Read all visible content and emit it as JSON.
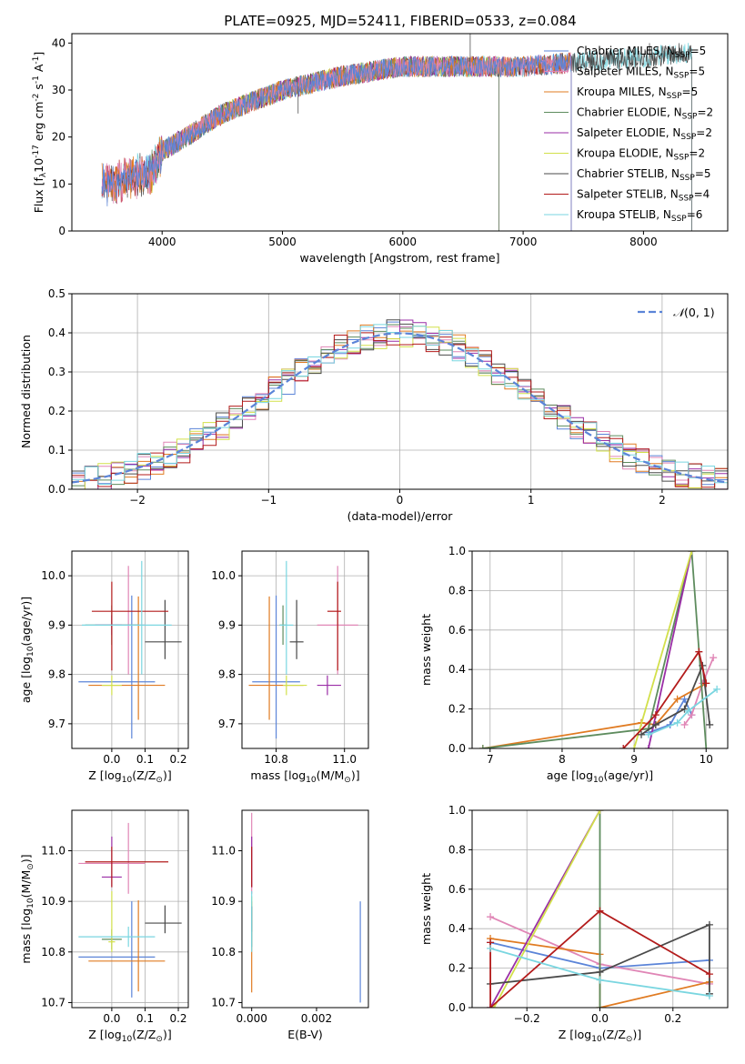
{
  "colors": {
    "Chabrier MILES": "#5b84d8",
    "Salpeter MILES": "#e086b6",
    "Kroupa MILES": "#e07b22",
    "Chabrier ELODIE": "#5e8c5e",
    "Salpeter ELODIE": "#9a2ea6",
    "Kroupa ELODIE": "#d2e04a",
    "Chabrier STELIB": "#4a4a4a",
    "Salpeter STELIB": "#b31b1b",
    "Kroupa STELIB": "#7ad6e0",
    "normal": "#5b84d8",
    "grid": "#b0b0b0"
  },
  "chart_data": [
    {
      "id": "spectrum",
      "type": "line",
      "title": "PLATE=0925, MJD=52411, FIBERID=0533, z=0.084",
      "xlabel": "wavelength [Angstrom, rest frame]",
      "ylabel": "Flux [f$_\\lambda$10$^{-17}$ erg cm$^{-2}$ s$^{-1}$ A$^{-1}$]",
      "xlim": [
        3250,
        8700
      ],
      "ylim": [
        0,
        42
      ],
      "xticks": [
        4000,
        5000,
        6000,
        7000,
        8000
      ],
      "yticks": [
        0,
        10,
        20,
        30,
        40
      ],
      "grid": false,
      "legend_position": "upper right",
      "series": [
        {
          "name": "Chabrier MILES, N$_{SSP}$=5",
          "color_key": "Chabrier MILES",
          "start": 3500,
          "end": 7400
        },
        {
          "name": "Salpeter MILES, N$_{SSP}$=5",
          "color_key": "Salpeter MILES",
          "start": 3500,
          "end": 7400
        },
        {
          "name": "Kroupa MILES, N$_{SSP}$=5",
          "color_key": "Kroupa MILES",
          "start": 3500,
          "end": 7400
        },
        {
          "name": "Chabrier ELODIE, N$_{SSP}$=2",
          "color_key": "Chabrier ELODIE",
          "start": 3900,
          "end": 6800
        },
        {
          "name": "Salpeter ELODIE, N$_{SSP}$=2",
          "color_key": "Salpeter ELODIE",
          "start": 3900,
          "end": 6800
        },
        {
          "name": "Kroupa ELODIE, N$_{SSP}$=2",
          "color_key": "Kroupa ELODIE",
          "start": 3900,
          "end": 6800
        },
        {
          "name": "Chabrier STELIB, N$_{SSP}$=5",
          "color_key": "Chabrier STELIB",
          "start": 3500,
          "end": 8400
        },
        {
          "name": "Salpeter STELIB, N$_{SSP}$=4",
          "color_key": "Salpeter STELIB",
          "start": 3500,
          "end": 7400
        },
        {
          "name": "Kroupa STELIB, N$_{SSP}$=6",
          "color_key": "Kroupa STELIB",
          "start": 3500,
          "end": 8400
        }
      ],
      "continuum": {
        "wavelength": [
          3500,
          3700,
          3900,
          4000,
          4200,
          4500,
          5000,
          5500,
          6000,
          6500,
          7000,
          7500,
          8000,
          8400
        ],
        "flux": [
          10,
          11,
          12,
          17,
          20,
          25,
          30,
          33,
          35,
          35,
          35,
          36,
          37,
          38
        ]
      },
      "spikes": [
        {
          "x": 5130,
          "y": 25
        },
        {
          "x": 6560,
          "y": 42
        },
        {
          "x": 8050,
          "y": 40
        }
      ]
    },
    {
      "id": "residuals",
      "type": "histogram",
      "xlabel": "(data-model)/error",
      "ylabel": "Normed distribution",
      "xlim": [
        -2.5,
        2.5
      ],
      "ylim": [
        0,
        0.5
      ],
      "xticks": [
        -2,
        -1,
        0,
        1,
        2
      ],
      "yticks": [
        0.0,
        0.1,
        0.2,
        0.3,
        0.4,
        0.5
      ],
      "grid": true,
      "legend_position": "upper right",
      "legend": "$\\mathcal{N}(0,1)$",
      "bin_width": 0.1,
      "bin_start": -2.5
    },
    {
      "id": "age-vs-Z",
      "type": "errorbar",
      "xlabel": "Z [log$_{10}$(Z/Z$_\\odot$)]",
      "ylabel": "age  [log$_{10}$(age/yr)]",
      "xlim": [
        -0.12,
        0.23
      ],
      "ylim": [
        9.65,
        10.05
      ],
      "xticks": [
        0.0,
        0.1,
        0.2
      ],
      "yticks": [
        9.7,
        9.8,
        9.9,
        10.0
      ],
      "grid": true,
      "points": [
        {
          "key": "Chabrier MILES",
          "x": 0.06,
          "y": 9.785,
          "xerr": [
            0.16,
            0.07
          ],
          "yerr": [
            0.115,
            0.175
          ]
        },
        {
          "key": "Salpeter MILES",
          "x": 0.05,
          "y": 9.9,
          "xerr": [
            0.05,
            0.05
          ],
          "yerr": [
            0.1,
            0.12
          ]
        },
        {
          "key": "Kroupa MILES",
          "x": 0.08,
          "y": 9.778,
          "xerr": [
            0.15,
            0.08
          ],
          "yerr": [
            0.07,
            0.18
          ]
        },
        {
          "key": "Chabrier ELODIE",
          "x": 0.0,
          "y": 9.9,
          "xerr": [
            0.08,
            0.08
          ],
          "yerr": [
            0.04,
            0.04
          ]
        },
        {
          "key": "Salpeter ELODIE",
          "x": 0.0,
          "y": 9.9,
          "xerr": [
            0.05,
            0.03
          ],
          "yerr": [
            0.02,
            0.02
          ]
        },
        {
          "key": "Kroupa ELODIE",
          "x": 0.0,
          "y": 9.778,
          "xerr": [
            0.03,
            0.03
          ],
          "yerr": [
            0.02,
            0.02
          ]
        },
        {
          "key": "Chabrier STELIB",
          "x": 0.16,
          "y": 9.866,
          "xerr": [
            0.06,
            0.05
          ],
          "yerr": [
            0.035,
            0.085
          ]
        },
        {
          "key": "Salpeter STELIB",
          "x": 0.0,
          "y": 9.928,
          "xerr": [
            0.06,
            0.17
          ],
          "yerr": [
            0.12,
            0.06
          ]
        },
        {
          "key": "Kroupa STELIB",
          "x": 0.09,
          "y": 9.9,
          "xerr": [
            0.18,
            0.09
          ],
          "yerr": [
            0.1,
            0.13
          ]
        }
      ]
    },
    {
      "id": "age-vs-mass",
      "type": "errorbar",
      "xlabel": "mass [log$_{10}$(M/M$_\\odot$)]",
      "ylabel": "",
      "xlim": [
        10.7,
        11.07
      ],
      "ylim": [
        9.65,
        10.05
      ],
      "xticks": [
        10.8,
        11.0
      ],
      "yticks": [
        9.7,
        9.8,
        9.9,
        10.0
      ],
      "grid": true,
      "points": [
        {
          "key": "Chabrier MILES",
          "x": 10.8,
          "y": 9.785,
          "xerr": [
            0.07,
            0.07
          ],
          "yerr": [
            0.115,
            0.175
          ]
        },
        {
          "key": "Salpeter MILES",
          "x": 10.98,
          "y": 9.9,
          "xerr": [
            0.06,
            0.06
          ],
          "yerr": [
            0.1,
            0.12
          ]
        },
        {
          "key": "Kroupa MILES",
          "x": 10.78,
          "y": 9.778,
          "xerr": [
            0.06,
            0.1
          ],
          "yerr": [
            0.07,
            0.18
          ]
        },
        {
          "key": "Chabrier ELODIE",
          "x": 10.82,
          "y": 9.9,
          "xerr": [
            0.01,
            0.01
          ],
          "yerr": [
            0.04,
            0.04
          ]
        },
        {
          "key": "Salpeter ELODIE",
          "x": 10.95,
          "y": 9.778,
          "xerr": [
            0.03,
            0.04
          ],
          "yerr": [
            0.02,
            0.02
          ]
        },
        {
          "key": "Kroupa ELODIE",
          "x": 10.83,
          "y": 9.778,
          "xerr": [
            0.01,
            0.06
          ],
          "yerr": [
            0.02,
            0.02
          ]
        },
        {
          "key": "Chabrier STELIB",
          "x": 10.86,
          "y": 9.866,
          "xerr": [
            0.02,
            0.02
          ],
          "yerr": [
            0.035,
            0.085
          ]
        },
        {
          "key": "Salpeter STELIB",
          "x": 10.98,
          "y": 9.928,
          "xerr": [
            0.03,
            0.01
          ],
          "yerr": [
            0.12,
            0.06
          ]
        },
        {
          "key": "Kroupa STELIB",
          "x": 10.83,
          "y": 9.9,
          "xerr": [
            0.02,
            0.02
          ],
          "yerr": [
            0.1,
            0.13
          ]
        }
      ]
    },
    {
      "id": "weight-vs-age",
      "type": "line",
      "xlabel": "age  [log$_{10}$(age/yr)]",
      "ylabel": "mass weight",
      "xlim": [
        6.75,
        10.3
      ],
      "ylim": [
        0,
        1
      ],
      "xticks": [
        7,
        8,
        9,
        10
      ],
      "yticks": [
        0.0,
        0.2,
        0.4,
        0.6,
        0.8,
        1.0
      ],
      "grid": true,
      "series": [
        {
          "key": "Chabrier MILES",
          "x": [
            9.2,
            9.5,
            9.7,
            9.8
          ],
          "y": [
            0.08,
            0.12,
            0.25,
            0.17
          ]
        },
        {
          "key": "Salpeter MILES",
          "x": [
            9.7,
            9.8,
            9.95,
            10.1
          ],
          "y": [
            0.12,
            0.17,
            0.33,
            0.46
          ]
        },
        {
          "key": "Kroupa MILES",
          "x": [
            6.9,
            9.1,
            9.3,
            9.6,
            10.0
          ],
          "y": [
            0.0,
            0.13,
            0.12,
            0.25,
            0.33
          ]
        },
        {
          "key": "Chabrier ELODIE",
          "x": [
            6.9,
            9.2,
            9.8,
            10.0
          ],
          "y": [
            0.0,
            0.1,
            1.0,
            0.0
          ]
        },
        {
          "key": "Salpeter ELODIE",
          "x": [
            9.2,
            9.8
          ],
          "y": [
            0.0,
            1.0
          ]
        },
        {
          "key": "Kroupa ELODIE",
          "x": [
            9.0,
            9.8
          ],
          "y": [
            0.0,
            1.0
          ]
        },
        {
          "key": "Chabrier STELIB",
          "x": [
            9.1,
            9.3,
            9.7,
            9.95,
            10.05
          ],
          "y": [
            0.07,
            0.12,
            0.2,
            0.42,
            0.12
          ]
        },
        {
          "key": "Salpeter STELIB",
          "x": [
            8.85,
            9.3,
            9.9,
            10.0
          ],
          "y": [
            0.0,
            0.17,
            0.49,
            0.33
          ]
        },
        {
          "key": "Kroupa STELIB",
          "x": [
            9.2,
            9.6,
            9.75,
            10.15
          ],
          "y": [
            0.07,
            0.13,
            0.19,
            0.3
          ]
        }
      ]
    },
    {
      "id": "mass-vs-Z",
      "type": "errorbar",
      "xlabel": "Z [log$_{10}$(Z/Z$_\\odot$)]",
      "ylabel": "mass [log$_{10}$(M/M$_\\odot$)]",
      "xlim": [
        -0.12,
        0.23
      ],
      "ylim": [
        10.69,
        11.08
      ],
      "xticks": [
        0.0,
        0.1,
        0.2
      ],
      "yticks": [
        10.7,
        10.8,
        10.9,
        11.0
      ],
      "grid": true,
      "points": [
        {
          "key": "Chabrier MILES",
          "x": 0.06,
          "y": 10.79,
          "xerr": [
            0.16,
            0.07
          ],
          "yerr": [
            0.08,
            0.11
          ]
        },
        {
          "key": "Salpeter MILES",
          "x": 0.05,
          "y": 10.975,
          "xerr": [
            0.15,
            0.05
          ],
          "yerr": [
            0.06,
            0.08
          ]
        },
        {
          "key": "Kroupa MILES",
          "x": 0.08,
          "y": 10.782,
          "xerr": [
            0.15,
            0.08
          ],
          "yerr": [
            0.06,
            0.12
          ]
        },
        {
          "key": "Chabrier ELODIE",
          "x": 0.0,
          "y": 10.825,
          "xerr": [
            0.03,
            0.03
          ],
          "yerr": [
            0.02,
            0.02
          ]
        },
        {
          "key": "Salpeter ELODIE",
          "x": 0.0,
          "y": 10.948,
          "xerr": [
            0.03,
            0.03
          ],
          "yerr": [
            0.02,
            0.08
          ]
        },
        {
          "key": "Kroupa ELODIE",
          "x": 0.0,
          "y": 10.82,
          "xerr": [
            0.01,
            0.01
          ],
          "yerr": [
            0.02,
            0.1
          ]
        },
        {
          "key": "Chabrier STELIB",
          "x": 0.16,
          "y": 10.857,
          "xerr": [
            0.06,
            0.05
          ],
          "yerr": [
            0.02,
            0.035
          ]
        },
        {
          "key": "Salpeter STELIB",
          "x": 0.0,
          "y": 10.978,
          "xerr": [
            0.08,
            0.17
          ],
          "yerr": [
            0.05,
            0.03
          ]
        },
        {
          "key": "Kroupa STELIB",
          "x": 0.05,
          "y": 10.83,
          "xerr": [
            0.15,
            0.08
          ],
          "yerr": [
            0.02,
            0.02
          ]
        }
      ]
    },
    {
      "id": "mass-vs-EBV",
      "type": "errorbar",
      "xlabel": "E(B-V)",
      "ylabel": "",
      "xlim": [
        -0.0003,
        0.0036
      ],
      "ylim": [
        10.69,
        11.08
      ],
      "xticks": [
        0.0,
        0.002
      ],
      "yticks": [
        10.7,
        10.8,
        10.9,
        11.0
      ],
      "grid": false,
      "points": [
        {
          "key": "Chabrier MILES",
          "x": 0.00335,
          "y": 10.8,
          "xerr": [
            0,
            0
          ],
          "yerr": [
            0.1,
            0.1
          ]
        },
        {
          "key": "Salpeter MILES",
          "x": 0.0,
          "y": 10.975,
          "xerr": [
            0,
            0
          ],
          "yerr": [
            0.06,
            0.1
          ]
        },
        {
          "key": "Kroupa MILES",
          "x": 0.0,
          "y": 10.8,
          "xerr": [
            0,
            0
          ],
          "yerr": [
            0.08,
            0.1
          ]
        },
        {
          "key": "Chabrier ELODIE",
          "x": 0.0,
          "y": 10.85,
          "xerr": [
            0,
            0
          ],
          "yerr": [
            0.04,
            0.04
          ]
        },
        {
          "key": "Salpeter ELODIE",
          "x": 0.0,
          "y": 10.948,
          "xerr": [
            0,
            0
          ],
          "yerr": [
            0.02,
            0.08
          ]
        },
        {
          "key": "Kroupa ELODIE",
          "x": 0.0,
          "y": 10.87,
          "xerr": [
            0,
            0
          ],
          "yerr": [
            0.03,
            0.04
          ]
        },
        {
          "key": "Chabrier STELIB",
          "x": 0.0,
          "y": 10.86,
          "xerr": [
            0,
            0
          ],
          "yerr": [
            0.02,
            0.03
          ]
        },
        {
          "key": "Salpeter STELIB",
          "x": 0.0,
          "y": 10.978,
          "xerr": [
            0,
            0
          ],
          "yerr": [
            0.05,
            0.03
          ]
        },
        {
          "key": "Kroupa STELIB",
          "x": 0.0,
          "y": 10.86,
          "xerr": [
            0,
            0
          ],
          "yerr": [
            0.06,
            0.06
          ]
        }
      ]
    },
    {
      "id": "weight-vs-Z",
      "type": "line",
      "xlabel": "Z [log$_{10}$(Z/Z$_\\odot$)]",
      "ylabel": "mass weight",
      "xlim": [
        -0.35,
        0.35
      ],
      "ylim": [
        0,
        1
      ],
      "xticks": [
        -0.2,
        0.0,
        0.2
      ],
      "yticks": [
        0.0,
        0.2,
        0.4,
        0.6,
        0.8,
        1.0
      ],
      "grid": true,
      "series": [
        {
          "key": "Chabrier MILES",
          "x": [
            -0.3,
            0.0,
            0.3
          ],
          "y": [
            0.33,
            0.2,
            0.24
          ]
        },
        {
          "key": "Salpeter MILES",
          "x": [
            -0.3,
            0.0,
            0.3
          ],
          "y": [
            0.46,
            0.22,
            0.12
          ]
        },
        {
          "key": "Kroupa MILES",
          "x": [
            -0.3,
            0.0,
            0.0,
            0.3
          ],
          "y": [
            0.35,
            0.27,
            0.0,
            0.13
          ]
        },
        {
          "key": "Chabrier ELODIE",
          "x": [
            0.0,
            0.0
          ],
          "y": [
            0.0,
            1.0
          ]
        },
        {
          "key": "Salpeter ELODIE",
          "x": [
            -0.3,
            0.0
          ],
          "y": [
            0.0,
            1.0
          ]
        },
        {
          "key": "Kroupa ELODIE",
          "x": [
            -0.29,
            0.0
          ],
          "y": [
            0.0,
            1.0
          ]
        },
        {
          "key": "Chabrier STELIB",
          "x": [
            -0.3,
            0.0,
            0.3,
            0.3
          ],
          "y": [
            0.12,
            0.18,
            0.42,
            0.07
          ]
        },
        {
          "key": "Salpeter STELIB",
          "x": [
            -0.3,
            -0.3,
            0.0,
            0.3
          ],
          "y": [
            0.33,
            0.0,
            0.49,
            0.17
          ]
        },
        {
          "key": "Kroupa STELIB",
          "x": [
            -0.3,
            0.0,
            0.3
          ],
          "y": [
            0.3,
            0.14,
            0.06
          ]
        }
      ]
    }
  ]
}
